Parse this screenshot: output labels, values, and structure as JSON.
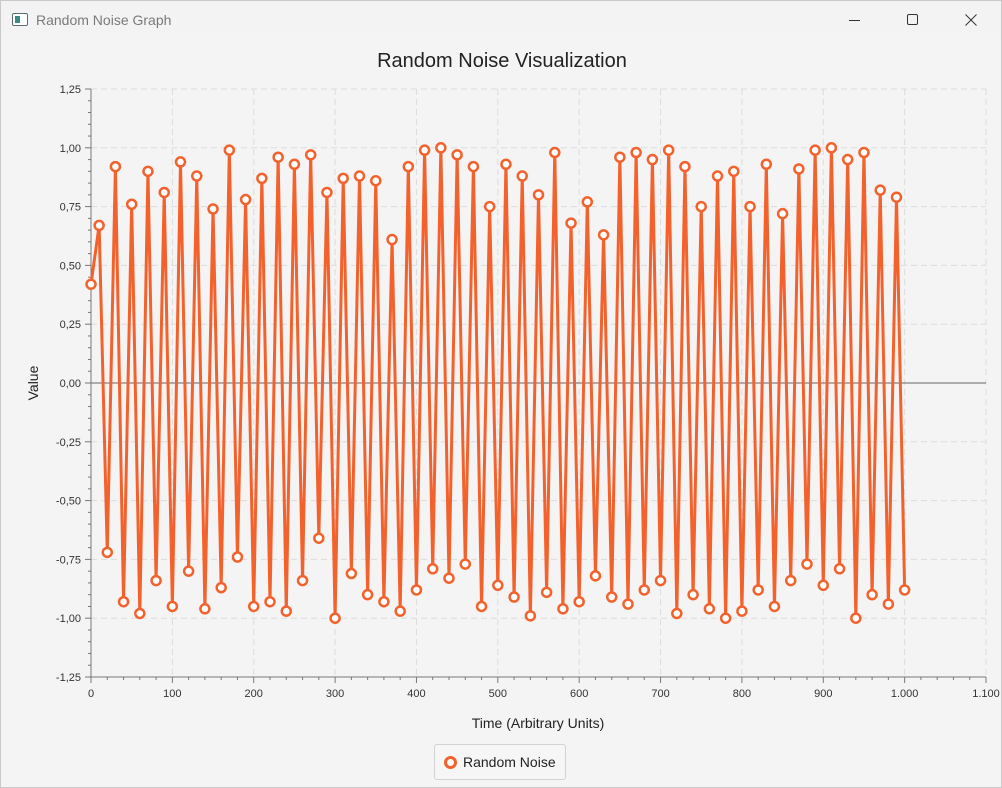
{
  "window": {
    "title": "Random Noise Graph"
  },
  "colors": {
    "series": "#f3622d",
    "grid": "#dcdcdc",
    "axis": "#777777",
    "background": "#f4f4f4"
  },
  "icons": {
    "minimize": "minimize-icon",
    "maximize": "maximize-icon",
    "close": "close-icon"
  },
  "chart_data": {
    "type": "line",
    "title": "Random Noise Visualization",
    "xlabel": "Time (Arbitrary Units)",
    "ylabel": "Value",
    "xlim": [
      0,
      1100
    ],
    "ylim": [
      -1.25,
      1.25
    ],
    "x_ticks": [
      0,
      100,
      200,
      300,
      400,
      500,
      600,
      700,
      800,
      900,
      1000,
      1100
    ],
    "x_tick_labels": [
      "0",
      "100",
      "200",
      "300",
      "400",
      "500",
      "600",
      "700",
      "800",
      "900",
      "1.000",
      "1.100"
    ],
    "y_ticks": [
      1.25,
      1.0,
      0.75,
      0.5,
      0.25,
      0.0,
      -0.25,
      -0.5,
      -0.75,
      -1.0,
      -1.25
    ],
    "y_tick_labels": [
      "1,25",
      "1,00",
      "0,75",
      "0,50",
      "0,25",
      "0,00",
      "-0,25",
      "-0,50",
      "-0,75",
      "-1,00",
      "-1,25"
    ],
    "grid": true,
    "legend": "bottom-center",
    "series": [
      {
        "name": "Random Noise",
        "x": [
          0,
          10,
          20,
          30,
          40,
          50,
          60,
          70,
          80,
          90,
          100,
          110,
          120,
          130,
          140,
          150,
          160,
          170,
          180,
          190,
          200,
          210,
          220,
          230,
          240,
          250,
          260,
          270,
          280,
          290,
          300,
          310,
          320,
          330,
          340,
          350,
          360,
          370,
          380,
          390,
          400,
          410,
          420,
          430,
          440,
          450,
          460,
          470,
          480,
          490,
          500,
          510,
          520,
          530,
          540,
          550,
          560,
          570,
          580,
          590,
          600,
          610,
          620,
          630,
          640,
          650,
          660,
          670,
          680,
          690,
          700,
          710,
          720,
          730,
          740,
          750,
          760,
          770,
          780,
          790,
          800,
          810,
          820,
          830,
          840,
          850,
          860,
          870,
          880,
          890,
          900,
          910,
          920,
          930,
          940,
          950,
          960,
          970,
          980,
          990,
          1000
        ],
        "values": [
          0.42,
          0.67,
          -0.72,
          0.92,
          -0.93,
          0.76,
          -0.98,
          0.9,
          -0.84,
          0.81,
          -0.95,
          0.94,
          -0.8,
          0.88,
          -0.96,
          0.74,
          -0.87,
          0.99,
          -0.74,
          0.78,
          -0.95,
          0.87,
          -0.93,
          0.96,
          -0.97,
          0.93,
          -0.84,
          0.97,
          -0.66,
          0.81,
          -1.0,
          0.87,
          -0.81,
          0.88,
          -0.9,
          0.86,
          -0.93,
          0.61,
          -0.97,
          0.92,
          -0.88,
          0.99,
          -0.79,
          1.0,
          -0.83,
          0.97,
          -0.77,
          0.92,
          -0.95,
          0.75,
          -0.86,
          0.93,
          -0.91,
          0.88,
          -0.99,
          0.8,
          -0.89,
          0.98,
          -0.96,
          0.68,
          -0.93,
          0.77,
          -0.82,
          0.63,
          -0.91,
          0.96,
          -0.94,
          0.98,
          -0.88,
          0.95,
          -0.84,
          0.99,
          -0.98,
          0.92,
          -0.9,
          0.75,
          -0.96,
          0.88,
          -1.0,
          0.9,
          -0.97,
          0.75,
          -0.88,
          0.93,
          -0.95,
          0.72,
          -0.84,
          0.91,
          -0.77,
          0.99,
          -0.86,
          1.0,
          -0.79,
          0.95,
          -1.0,
          0.98,
          -0.9,
          0.82,
          -0.94,
          0.79,
          -0.88
        ]
      }
    ]
  },
  "legend": {
    "label": "Random Noise"
  }
}
